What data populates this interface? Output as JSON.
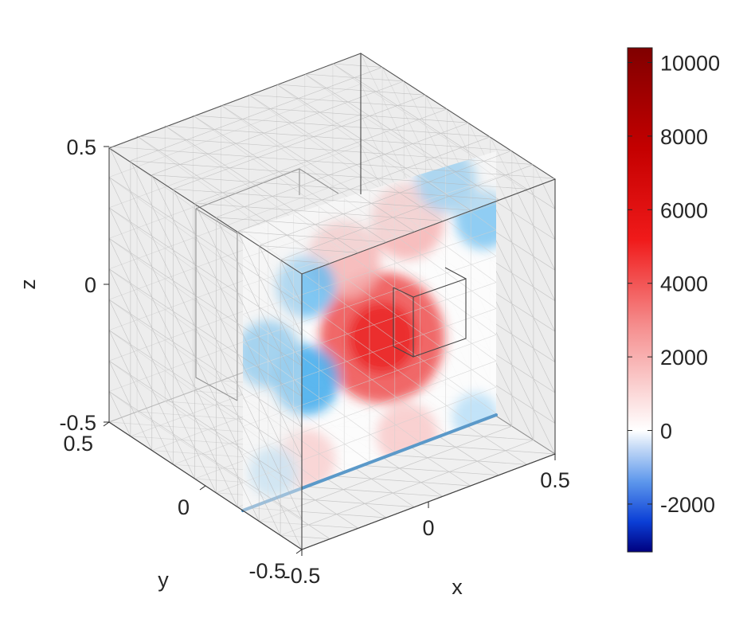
{
  "chart_data": {
    "type": "heatmap",
    "title": "",
    "axes": {
      "x": {
        "label": "x",
        "ticks": [
          "-0.5",
          "0",
          "0.5"
        ],
        "range": [
          -0.5,
          0.5
        ]
      },
      "y": {
        "label": "y",
        "ticks": [
          "-0.5",
          "0",
          "0.5"
        ],
        "range": [
          -0.5,
          0.5
        ]
      },
      "z": {
        "label": "z",
        "ticks": [
          "-0.5",
          "0",
          "0.5"
        ],
        "range": [
          -0.5,
          0.5
        ]
      }
    },
    "colorbar": {
      "ticks": [
        "-2000",
        "0",
        "2000",
        "4000",
        "6000",
        "8000",
        "10000"
      ],
      "range": [
        -3300,
        10400
      ],
      "colormap": "blue-white-red"
    },
    "field_slice": {
      "plane": "x-z at y = -0.5 (front face)",
      "blobs": [
        {
          "x": 0.05,
          "z": -0.05,
          "value": 6200
        },
        {
          "x": -0.1,
          "z": 0.3,
          "value": 2600
        },
        {
          "x": 0.15,
          "z": 0.35,
          "value": 2600
        },
        {
          "x": -0.25,
          "z": -0.4,
          "value": 1600
        },
        {
          "x": 0.15,
          "z": -0.45,
          "value": 1800
        },
        {
          "x": -0.25,
          "z": -0.1,
          "value": -2200
        },
        {
          "x": -0.4,
          "z": 0.05,
          "value": -2000
        },
        {
          "x": -0.25,
          "z": 0.25,
          "value": -1700
        },
        {
          "x": 0.3,
          "z": 0.45,
          "value": -1800
        },
        {
          "x": 0.45,
          "z": 0.25,
          "value": -1500
        },
        {
          "x": 0.42,
          "z": -0.48,
          "value": -800
        },
        {
          "x": -0.38,
          "z": -0.4,
          "value": -900
        }
      ]
    }
  },
  "colors": {
    "background": "#ffffff",
    "cube_face": "#ebebeb",
    "mesh": "#bdbdbd",
    "boundary_line": "#3a86c0",
    "max_color": "#800000",
    "min_color": "#00007f"
  }
}
